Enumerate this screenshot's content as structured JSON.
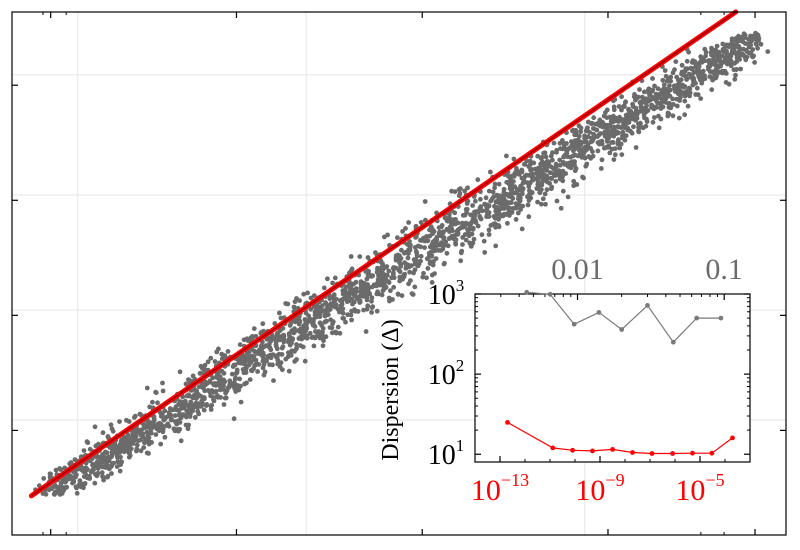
{
  "chart_data": [
    {
      "type": "scatter",
      "title": "",
      "xlabel": "",
      "ylabel": "",
      "grid": true,
      "colors": {
        "points": "#6b6b6b",
        "fit_line": "#ff0000",
        "fit_core": "#8b0000"
      },
      "main_series": {
        "name": "",
        "description_count_hint": "dense"
      },
      "fit_line": {
        "x": [
          0.0,
          1.0
        ],
        "y": [
          0.0,
          1.0
        ]
      }
    },
    {
      "type": "line",
      "xscale": "log",
      "yscale": "log",
      "ylabel": "Dispersion (Δ)",
      "xlim": [
        1e-14,
        0.001
      ],
      "ylim": [
        8,
        1000
      ],
      "bottom_xticks": [
        {
          "label": "10",
          "exp": "−13",
          "value": 1e-13
        },
        {
          "label": "10",
          "exp": "−9",
          "value": 1e-09
        },
        {
          "label": "10",
          "exp": "−5",
          "value": 1e-05
        }
      ],
      "top_xticks": [
        {
          "label": "0.01",
          "value": 0.01
        },
        {
          "label": "0.1",
          "value": 0.1
        }
      ],
      "top_xlim": [
        0.002,
        0.15
      ],
      "yticks": [
        {
          "label": "10",
          "exp": "1",
          "value": 10
        },
        {
          "label": "10",
          "exp": "2",
          "value": 100
        },
        {
          "label": "10",
          "exp": "3",
          "value": 1000
        }
      ],
      "bottom_axis_color": "#ff0000",
      "top_axis_color": "#6b6b6b",
      "series": [
        {
          "name": "",
          "color": "#7a7a7a",
          "x_top": [
            0.0045,
            0.0065,
            0.0095,
            0.014,
            0.02,
            0.03,
            0.045,
            0.065,
            0.095
          ],
          "y": [
            1050,
            990,
            420,
            590,
            360,
            720,
            250,
            500,
            500
          ]
        },
        {
          "name": "",
          "color": "#ff0000",
          "x": [
            2e-13,
            1.3e-11,
            8e-11,
            5e-10,
            3.2e-09,
            2e-08,
            1.2e-07,
            8e-07,
            5e-06,
            3e-05,
            0.0002
          ],
          "y": [
            25,
            12,
            11.2,
            11,
            11.5,
            10.5,
            10.2,
            10.2,
            10.3,
            10.3,
            16
          ]
        }
      ]
    }
  ]
}
